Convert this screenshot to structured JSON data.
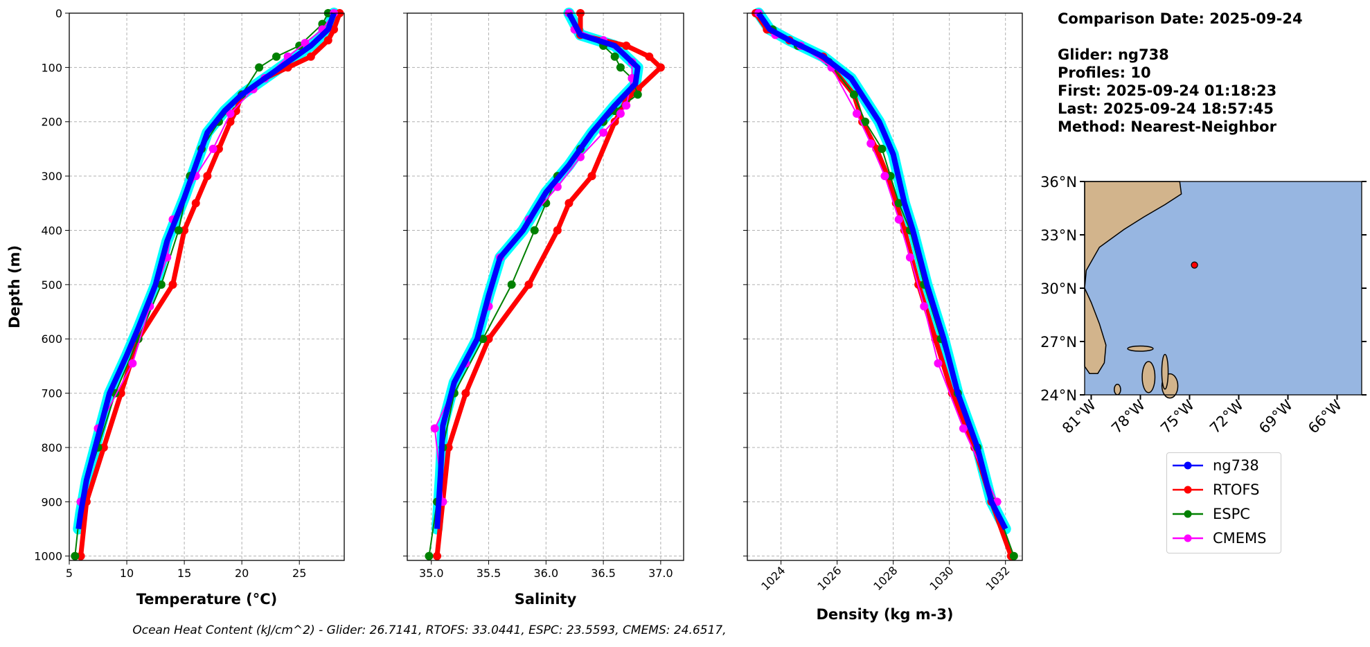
{
  "info": {
    "comparison_date": "Comparison Date: 2025-09-24",
    "glider": "Glider: ng738",
    "profiles": "Profiles: 10",
    "first": "First: 2025-09-24 01:18:23",
    "last": "Last: 2025-09-24 18:57:45",
    "method": "Method: Nearest-Neighbor"
  },
  "caption": "Ocean Heat Content (kJ/cm^2) - Glider: 26.7141,  RTOFS: 33.0441,  ESPC: 23.5593,  CMEMS: 24.6517,",
  "colors": {
    "ng738": "#0000ff",
    "glider_profiles": "#00ffff",
    "RTOFS": "#ff0000",
    "ESPC": "#008000",
    "CMEMS": "#ff00ff",
    "ocean": "#97b6e1",
    "land": "#d2b48c"
  },
  "legend": [
    "ng738",
    "RTOFS",
    "ESPC",
    "CMEMS"
  ],
  "chart_data": [
    {
      "type": "line",
      "xlabel": "Temperature (°C)",
      "ylabel": "Depth (m)",
      "xlim": [
        5,
        28.9
      ],
      "ylim": [
        1008,
        0
      ],
      "xticks": [
        "5",
        "10",
        "15",
        "20",
        "25"
      ],
      "yticks": [
        "0",
        "100",
        "200",
        "300",
        "400",
        "500",
        "600",
        "700",
        "800",
        "900",
        "1000"
      ],
      "grid": true,
      "series": [
        {
          "name": "ng738",
          "points": [
            [
              28,
              0
            ],
            [
              27.5,
              30
            ],
            [
              26,
              60
            ],
            [
              24,
              90
            ],
            [
              22,
              120
            ],
            [
              20,
              150
            ],
            [
              18.5,
              180
            ],
            [
              17,
              220
            ],
            [
              16,
              280
            ],
            [
              15,
              340
            ],
            [
              13.5,
              420
            ],
            [
              12.5,
              500
            ],
            [
              11,
              580
            ],
            [
              10,
              630
            ],
            [
              8.5,
              700
            ],
            [
              7.5,
              780
            ],
            [
              6.5,
              860
            ],
            [
              6,
              920
            ],
            [
              5.8,
              950
            ]
          ]
        },
        {
          "name": "RTOFS",
          "points": [
            [
              28.5,
              0
            ],
            [
              28,
              30
            ],
            [
              27.5,
              50
            ],
            [
              26,
              80
            ],
            [
              24,
              100
            ],
            [
              22,
              120
            ],
            [
              20,
              150
            ],
            [
              19.5,
              180
            ],
            [
              19,
              200
            ],
            [
              18,
              250
            ],
            [
              17,
              300
            ],
            [
              16,
              350
            ],
            [
              15,
              400
            ],
            [
              14,
              500
            ],
            [
              11,
              600
            ],
            [
              9.5,
              700
            ],
            [
              8,
              800
            ],
            [
              6.5,
              900
            ],
            [
              6,
              1000
            ]
          ]
        },
        {
          "name": "ESPC",
          "points": [
            [
              27.5,
              0
            ],
            [
              27,
              20
            ],
            [
              25,
              60
            ],
            [
              23,
              80
            ],
            [
              21.5,
              100
            ],
            [
              20,
              150
            ],
            [
              18,
              200
            ],
            [
              16.5,
              250
            ],
            [
              15.5,
              300
            ],
            [
              14.5,
              400
            ],
            [
              13,
              500
            ],
            [
              11,
              600
            ],
            [
              9,
              700
            ],
            [
              7.5,
              800
            ],
            [
              6,
              900
            ],
            [
              5.5,
              1000
            ]
          ]
        },
        {
          "name": "CMEMS",
          "points": [
            [
              28,
              0
            ],
            [
              27,
              30
            ],
            [
              25.5,
              55
            ],
            [
              24,
              80
            ],
            [
              22,
              120
            ],
            [
              21,
              140
            ],
            [
              19,
              185
            ],
            [
              17.5,
              250
            ],
            [
              16,
              300
            ],
            [
              14,
              380
            ],
            [
              13.5,
              450
            ],
            [
              12,
              540
            ],
            [
              10.5,
              645
            ],
            [
              7.5,
              765
            ],
            [
              6,
              900
            ]
          ]
        }
      ]
    },
    {
      "type": "line",
      "xlabel": "Salinity",
      "ylabel": "",
      "xlim": [
        34.79,
        37.2
      ],
      "ylim": [
        1008,
        0
      ],
      "xticks": [
        "35.0",
        "35.5",
        "36.0",
        "36.5",
        "37.0"
      ],
      "grid": true,
      "series": [
        {
          "name": "ng738",
          "points": [
            [
              36.2,
              0
            ],
            [
              36.3,
              40
            ],
            [
              36.6,
              60
            ],
            [
              36.8,
              100
            ],
            [
              36.78,
              130
            ],
            [
              36.6,
              170
            ],
            [
              36.4,
              220
            ],
            [
              36.2,
              280
            ],
            [
              36.0,
              330
            ],
            [
              35.8,
              400
            ],
            [
              35.6,
              450
            ],
            [
              35.5,
              520
            ],
            [
              35.4,
              600
            ],
            [
              35.2,
              680
            ],
            [
              35.1,
              760
            ],
            [
              35.08,
              850
            ],
            [
              35.05,
              950
            ]
          ]
        },
        {
          "name": "RTOFS",
          "points": [
            [
              36.3,
              0
            ],
            [
              36.3,
              40
            ],
            [
              36.7,
              60
            ],
            [
              36.9,
              80
            ],
            [
              37.0,
              100
            ],
            [
              36.8,
              140
            ],
            [
              36.7,
              160
            ],
            [
              36.6,
              200
            ],
            [
              36.4,
              300
            ],
            [
              36.2,
              350
            ],
            [
              36.1,
              400
            ],
            [
              35.85,
              500
            ],
            [
              35.5,
              600
            ],
            [
              35.3,
              700
            ],
            [
              35.15,
              800
            ],
            [
              35.1,
              900
            ],
            [
              35.05,
              1000
            ]
          ]
        },
        {
          "name": "ESPC",
          "points": [
            [
              36.2,
              0
            ],
            [
              36.25,
              30
            ],
            [
              36.5,
              60
            ],
            [
              36.6,
              80
            ],
            [
              36.65,
              100
            ],
            [
              36.75,
              120
            ],
            [
              36.8,
              150
            ],
            [
              36.6,
              180
            ],
            [
              36.5,
              200
            ],
            [
              36.3,
              250
            ],
            [
              36.1,
              300
            ],
            [
              36.0,
              350
            ],
            [
              35.9,
              400
            ],
            [
              35.7,
              500
            ],
            [
              35.45,
              600
            ],
            [
              35.2,
              700
            ],
            [
              35.1,
              800
            ],
            [
              35.05,
              900
            ],
            [
              34.98,
              1000
            ]
          ]
        },
        {
          "name": "CMEMS",
          "points": [
            [
              36.2,
              0
            ],
            [
              36.25,
              30
            ],
            [
              36.5,
              50
            ],
            [
              36.75,
              90
            ],
            [
              36.75,
              120
            ],
            [
              36.7,
              170
            ],
            [
              36.65,
              185
            ],
            [
              36.5,
              220
            ],
            [
              36.3,
              265
            ],
            [
              36.1,
              320
            ],
            [
              35.85,
              380
            ],
            [
              35.6,
              450
            ],
            [
              35.5,
              540
            ],
            [
              35.3,
              645
            ],
            [
              35.03,
              765
            ],
            [
              35.1,
              900
            ]
          ]
        }
      ]
    },
    {
      "type": "line",
      "xlabel": "Density (kg m-3)",
      "ylabel": "",
      "xlim": [
        1022.8,
        1032.6
      ],
      "ylim": [
        1008,
        0
      ],
      "xticks": [
        "1024",
        "1026",
        "1028",
        "1030",
        "1032"
      ],
      "grid": true,
      "series": [
        {
          "name": "ng738",
          "points": [
            [
              1023.2,
              0
            ],
            [
              1023.6,
              30
            ],
            [
              1024.3,
              50
            ],
            [
              1025.5,
              80
            ],
            [
              1026.5,
              120
            ],
            [
              1027,
              160
            ],
            [
              1027.5,
              200
            ],
            [
              1028,
              260
            ],
            [
              1028.4,
              350
            ],
            [
              1028.7,
              400
            ],
            [
              1029.2,
              500
            ],
            [
              1029.8,
              600
            ],
            [
              1030.3,
              700
            ],
            [
              1031,
              800
            ],
            [
              1031.5,
              900
            ],
            [
              1032,
              950
            ]
          ]
        },
        {
          "name": "RTOFS",
          "points": [
            [
              1023.1,
              0
            ],
            [
              1023.5,
              30
            ],
            [
              1024.3,
              50
            ],
            [
              1025.5,
              80
            ],
            [
              1026.6,
              150
            ],
            [
              1026.9,
              200
            ],
            [
              1027.4,
              250
            ],
            [
              1027.8,
              300
            ],
            [
              1028.1,
              350
            ],
            [
              1028.4,
              400
            ],
            [
              1028.9,
              500
            ],
            [
              1029.5,
              600
            ],
            [
              1030.1,
              700
            ],
            [
              1030.9,
              800
            ],
            [
              1031.5,
              900
            ],
            [
              1032.2,
              1000
            ]
          ]
        },
        {
          "name": "ESPC",
          "points": [
            [
              1023.2,
              0
            ],
            [
              1023.7,
              30
            ],
            [
              1024.6,
              60
            ],
            [
              1025.7,
              90
            ],
            [
              1026.6,
              150
            ],
            [
              1027.0,
              200
            ],
            [
              1027.6,
              250
            ],
            [
              1027.9,
              300
            ],
            [
              1028.2,
              350
            ],
            [
              1028.6,
              400
            ],
            [
              1029.1,
              500
            ],
            [
              1029.7,
              600
            ],
            [
              1030.3,
              700
            ],
            [
              1031.0,
              800
            ],
            [
              1031.6,
              900
            ],
            [
              1032.3,
              1000
            ]
          ]
        },
        {
          "name": "CMEMS",
          "points": [
            [
              1023.2,
              0
            ],
            [
              1023.8,
              40
            ],
            [
              1024.7,
              60
            ],
            [
              1025.8,
              100
            ],
            [
              1026.7,
              185
            ],
            [
              1027.2,
              240
            ],
            [
              1027.7,
              300
            ],
            [
              1028.2,
              380
            ],
            [
              1028.6,
              450
            ],
            [
              1029.1,
              540
            ],
            [
              1029.6,
              645
            ],
            [
              1030.5,
              765
            ],
            [
              1031.7,
              900
            ]
          ]
        }
      ]
    }
  ],
  "map": {
    "lon_ticks": [
      "81°W",
      "78°W",
      "75°W",
      "72°W",
      "69°W",
      "66°W"
    ],
    "lon_values": [
      -81,
      -78,
      -75,
      -72,
      -69,
      -66
    ],
    "lat_ticks": [
      "36°N",
      "33°N",
      "30°N",
      "27°N",
      "24°N"
    ],
    "lat_values": [
      36,
      33,
      30,
      27,
      24
    ],
    "lon_range": [
      -81.4,
      -64.5
    ],
    "lat_range": [
      24,
      36
    ],
    "glider_position": [
      -74.7,
      31.3
    ]
  }
}
